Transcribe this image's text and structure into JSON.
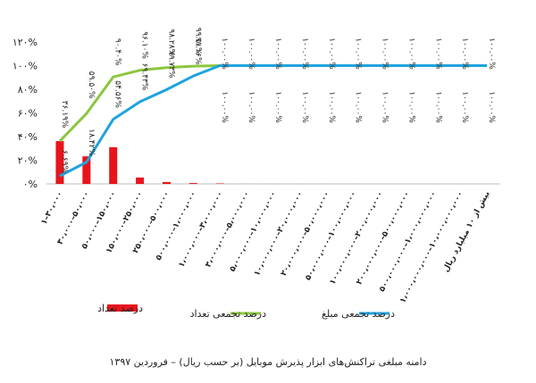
{
  "chart_data": {
    "type": "bar",
    "title": "",
    "caption": "دامنه مبلغی تراکنش‌های ابزار پذیرش موبایل (بر حسب ریال) – فروردین ۱۳۹۷",
    "ylim": [
      0,
      120
    ],
    "yticks": [
      0,
      20,
      40,
      60,
      80,
      100,
      120
    ],
    "ytick_labels": [
      "۰%",
      "۲۰%",
      "۴۰%",
      "۶۰%",
      "۸۰%",
      "۱۰۰%",
      "۱۲۰%"
    ],
    "grid": false,
    "legend_position": "bottom",
    "categories": [
      "۱–۳۰،۰۰۰",
      "۳۰،۰۰۰–۵۰،۰۰۰",
      "۵۰،۰۰۰–۱۵۰،۰۰۰",
      "۱۵۰،۰۰۰–۲۵۰،۰۰۰",
      "۲۵۰،۰۰۰–۵۰۰،۰۰۰",
      "۵۰۰،۰۰۰–۱،۰۰۰،۰۰۰",
      "۱،۰۰۰،۰۰۰–۳،۰۰۰،۰۰۰",
      "۳،۰۰۰،۰۰۰–۵،۰۰۰،۰۰۰",
      "۵،۰۰۰،۰۰۰–۱۰،۰۰۰،۰۰۰",
      "۱۰،۰۰۰،۰۰۰–۲۰،۰۰۰،۰۰۰",
      "۲۰،۰۰۰،۰۰۰–۵۰،۰۰۰،۰۰۰",
      "۵۰،۰۰۰،۰۰۰–۱۰۰،۰۰۰،۰۰۰",
      "۱۰۰،۰۰۰،۰۰۰–۲۰۰،۰۰۰،۰۰۰",
      "۲۰۰،۰۰۰،۰۰۰–۵۰۰،۰۰۰،۰۰۰",
      "۵۰۰،۰۰۰،۰۰۰–۱،۰۰۰،۰۰۰،۰۰۰",
      "۱،۰۰۰،۰۰۰،۰۰۰–۱۰،۰۰۰،۰۰۰،۰۰۰",
      "بیش از ۱۰ میلیارد ریال"
    ],
    "series": [
      {
        "name": "درصد تعداد",
        "type": "bar",
        "color": "#e8141c",
        "values": [
          36.2,
          23.3,
          31.0,
          5.4,
          1.6,
          0.7,
          0.4,
          0.05,
          0.03,
          0.02,
          0.01,
          0.01,
          0,
          0,
          0,
          0,
          0
        ]
      },
      {
        "name": "درصد تجمعی تعداد",
        "type": "line",
        "color": "#8cc63f",
        "values": [
          36.2,
          59.5,
          90.4,
          96.1,
          98.3,
          99.5,
          100,
          100,
          100,
          100,
          100,
          100,
          100,
          100,
          100,
          100,
          100
        ],
        "labels": [
          "۳۶.۱۹%",
          "۵۹.۵۰%",
          "۹۰.۴۰%",
          "۹۶.۱۰%",
          "۹۸.۲۸%",
          "۹۹.۵۱%",
          "۱۰۰.۰۰%",
          "۱۰۰.۰۰%",
          "۱۰۰.۰۰%",
          "۱۰۰.۰۰%",
          "۱۰۰.۰۰%",
          "۱۰۰.۰۰%",
          "۱۰۰.۰۰%",
          "۱۰۰.۰۰%",
          "۱۰۰.۰۰%",
          "۱۰۰.۰۰%",
          "۱۰۰.۰۰%"
        ]
      },
      {
        "name": "درصد تجمعی مبلغ",
        "type": "line",
        "color": "#1fa3dc",
        "values": [
          6.7,
          18.4,
          54.6,
          69.4,
          79.7,
          91.2,
          100,
          100,
          100,
          100,
          100,
          100,
          100,
          100,
          100,
          100,
          100
        ],
        "labels": [
          "۶.۶۹%",
          "۱۸.۴۲%",
          "۵۴.۵۶%",
          "۶۹.۴۳%",
          "۷۹.۷۳%",
          "۹۱.۱۶%",
          "۱۰۰.۰۰%",
          "۱۰۰.۰۰%",
          "۱۰۰.۰۰%",
          "۱۰۰.۰۰%",
          "۱۰۰.۰۰%",
          "۱۰۰.۰۰%",
          "۱۰۰.۰۰%",
          "۱۰۰.۰۰%",
          "۱۰۰.۰۰%",
          "۱۰۰.۰۰%",
          "۱۰۰.۰۰%"
        ]
      }
    ]
  }
}
